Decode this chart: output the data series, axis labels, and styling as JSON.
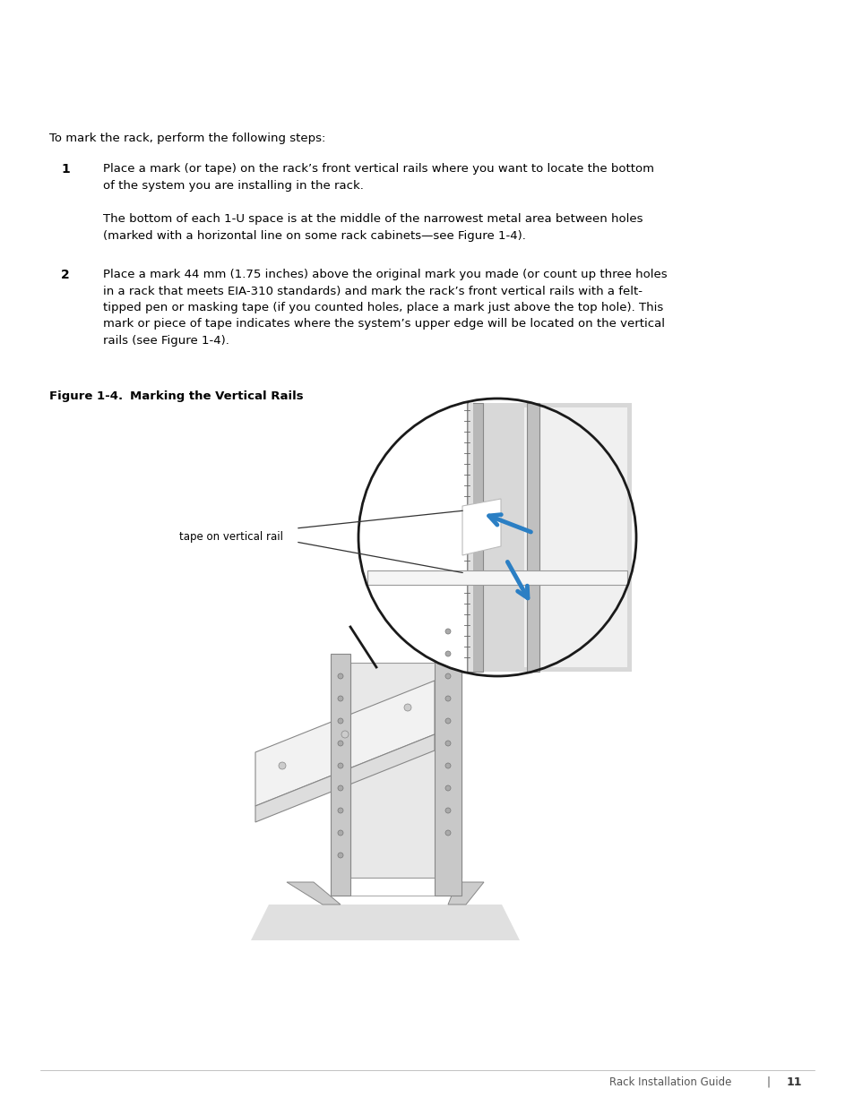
{
  "bg_color": "#ffffff",
  "text_color": "#000000",
  "page_width": 9.54,
  "page_height": 12.35,
  "dpi": 100,
  "intro_text": "To mark the rack, perform the following steps:",
  "step1_num": "1",
  "step1_text": "Place a mark (or tape) on the rack’s front vertical rails where you want to locate the bottom\nof the system you are installing in the rack.",
  "step1_sub": "The bottom of each 1-U space is at the middle of the narrowest metal area between holes\n(marked with a horizontal line on some rack cabinets—see Figure 1-4).",
  "step2_num": "2",
  "step2_text": "Place a mark 44 mm (1.75 inches) above the original mark you made (or count up three holes\nin a rack that meets EIA-310 standards) and mark the rack’s front vertical rails with a felt-\ntipped pen or masking tape (if you counted holes, place a mark just above the top hole). This\nmark or piece of tape indicates where the system’s upper edge will be located on the vertical\nrails (see Figure 1-4).",
  "figure_label": "Figure 1-4.",
  "figure_title": "Marking the Vertical Rails",
  "callout_text": "tape on vertical rail",
  "footer_text": "Rack Installation Guide",
  "footer_separator": "|",
  "footer_page": "11",
  "arrow_color": "#2b7fc4",
  "arrow_color2": "#1a6aaa"
}
